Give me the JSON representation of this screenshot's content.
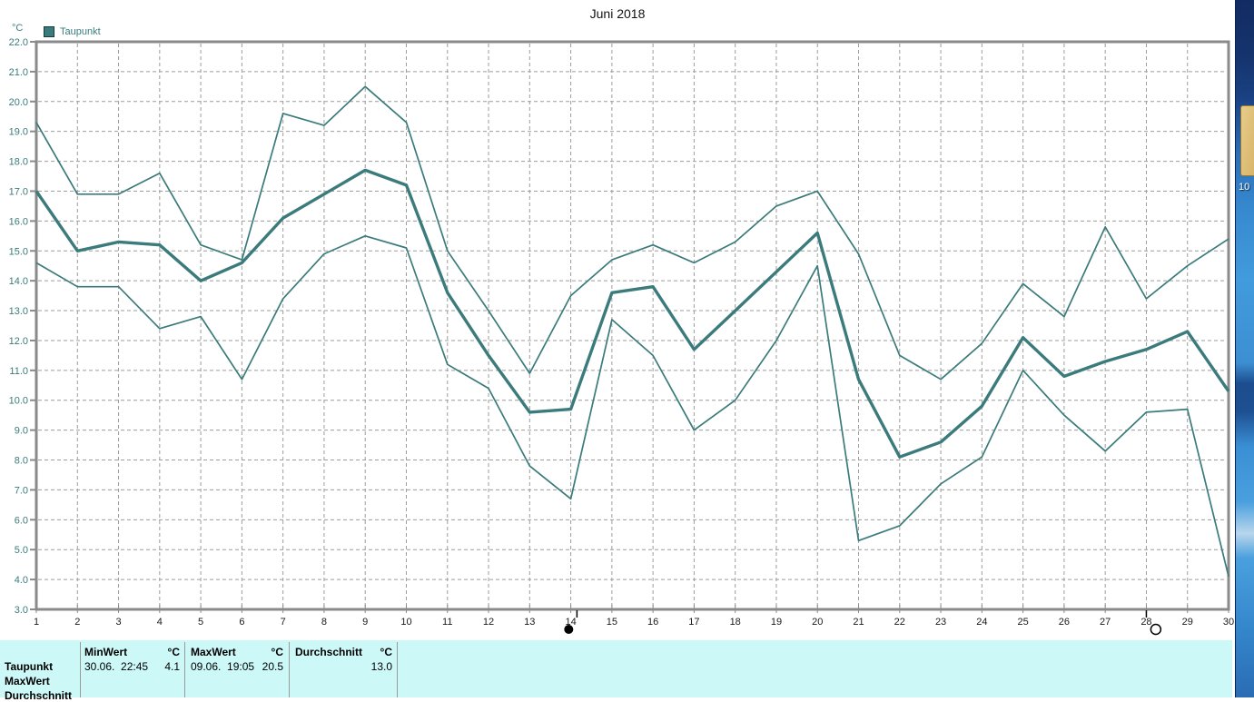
{
  "window": {
    "title": "Juni 2018",
    "y_axis_unit": "°C",
    "legend": {
      "label": "Taupunkt",
      "swatch_color": "#3B7B7B"
    }
  },
  "chart_data": {
    "type": "line",
    "title": "Juni 2018",
    "ylabel": "°C",
    "xlabel": "",
    "x": [
      1,
      2,
      3,
      4,
      5,
      6,
      7,
      8,
      9,
      10,
      11,
      12,
      13,
      14,
      15,
      16,
      17,
      18,
      19,
      20,
      21,
      22,
      23,
      24,
      25,
      26,
      27,
      28,
      29,
      30
    ],
    "ylim": [
      3.0,
      22.0
    ],
    "y_tick_step": 1.0,
    "grid": "dashed",
    "legend_position": "top-left",
    "series": [
      {
        "name": "daily-max",
        "thick": false,
        "values": [
          19.3,
          16.9,
          16.9,
          17.6,
          15.2,
          14.7,
          19.6,
          19.2,
          20.5,
          19.3,
          15.0,
          13.0,
          10.9,
          13.5,
          14.7,
          15.2,
          14.6,
          15.3,
          16.5,
          17.0,
          14.9,
          11.5,
          10.7,
          11.9,
          13.9,
          12.8,
          15.8,
          13.4,
          14.5,
          15.4
        ]
      },
      {
        "name": "daily-mean",
        "thick": true,
        "values": [
          17.0,
          15.0,
          15.3,
          15.2,
          14.0,
          14.6,
          16.1,
          16.9,
          17.7,
          17.2,
          13.6,
          11.5,
          9.6,
          9.7,
          13.6,
          13.8,
          11.7,
          13.0,
          14.3,
          15.6,
          10.7,
          8.1,
          8.6,
          9.8,
          12.1,
          10.8,
          11.3,
          11.7,
          12.3,
          10.3
        ]
      },
      {
        "name": "daily-min",
        "thick": false,
        "values": [
          14.6,
          13.8,
          13.8,
          12.4,
          12.8,
          10.7,
          13.4,
          14.9,
          15.5,
          15.1,
          11.2,
          10.4,
          7.8,
          6.7,
          12.7,
          11.5,
          9.0,
          10.0,
          12.0,
          14.5,
          5.3,
          5.8,
          7.2,
          8.1,
          11.0,
          9.5,
          8.3,
          9.6,
          9.7,
          4.1
        ]
      }
    ],
    "moon_markers": [
      {
        "name": "new-moon",
        "symbol": "filled-circle",
        "circle_day": 13.95,
        "tick_day": 14.15
      },
      {
        "name": "full-moon",
        "symbol": "open-circle",
        "circle_day": 28.23,
        "tick_day": 28.0
      }
    ]
  },
  "colors": {
    "line_teal": "#3B7B7B",
    "grid": "#9C9C9C",
    "axis": "#8A8A8A",
    "panel_bg": "#CCF8F8",
    "y_label": "#3B7B7B",
    "x_label": "#1A1A1A",
    "moon": "#000000"
  },
  "summary_table": {
    "row_labels": [
      "Taupunkt",
      "MaxWert",
      "Durchschnitt"
    ],
    "columns": [
      {
        "header": "MinWert",
        "unit": "°C",
        "datetime": "30.06.  22:45",
        "value": "4.1"
      },
      {
        "header": "MaxWert",
        "unit": "°C",
        "datetime": "09.06.  19:05",
        "value": "20.5"
      },
      {
        "header": "Durchschnitt",
        "unit": "°C",
        "datetime": "",
        "value": "13.0"
      }
    ]
  },
  "desktop": {
    "icon_label": "10"
  }
}
